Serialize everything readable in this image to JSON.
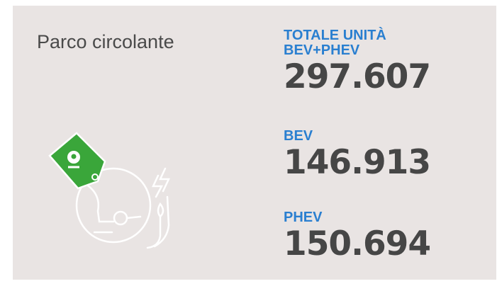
{
  "title": "Parco circolante",
  "stats": [
    {
      "label": [
        "TOTALE UNITÀ",
        "BEV+PHEV"
      ],
      "value": "297.607"
    },
    {
      "label": [
        "BEV"
      ],
      "value": "146.913"
    },
    {
      "label": [
        "PHEV"
      ],
      "value": "150.694"
    }
  ]
}
